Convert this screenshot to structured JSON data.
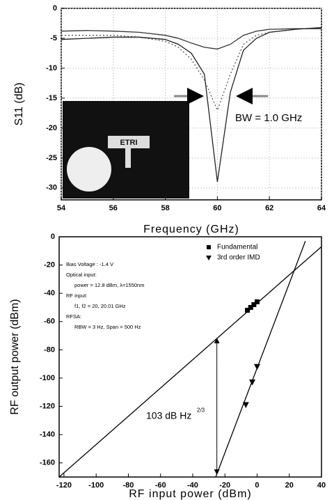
{
  "chart_data": [
    {
      "type": "line",
      "x_label": "Frequency (GHz)",
      "y_label": "S11 (dB)",
      "xlim": [
        54,
        64
      ],
      "ylim": [
        -32,
        0
      ],
      "xticks": [
        54,
        56,
        58,
        60,
        62,
        64
      ],
      "yticks": [
        0,
        -5,
        -10,
        -15,
        -20,
        -25,
        -30
      ],
      "grid": true,
      "x": [
        54,
        55,
        56,
        57,
        58,
        58.5,
        59,
        59.5,
        60,
        60.5,
        61,
        61.5,
        62,
        63,
        64
      ],
      "series": [
        {
          "color": "#333333",
          "dash": "none",
          "values": [
            -3.8,
            -3.7,
            -3.8,
            -4,
            -4.5,
            -5,
            -5.8,
            -6.5,
            -6.8,
            -6,
            -4.5,
            -3.8,
            -3.5,
            -3.4,
            -3.4
          ]
        },
        {
          "color": "#555555",
          "dash": "2,3",
          "values": [
            -4.5,
            -4.5,
            -4.5,
            -4.8,
            -5.5,
            -6.5,
            -8.5,
            -12,
            -17,
            -11,
            -6,
            -4.5,
            -4,
            -3.5,
            -3.2
          ]
        },
        {
          "color": "#222222",
          "dash": "none",
          "values": [
            -5.2,
            -5,
            -4.8,
            -4.8,
            -5.2,
            -6,
            -7.5,
            -11,
            -29,
            -14,
            -7,
            -5,
            -4,
            -3.5,
            -3.2
          ]
        }
      ],
      "annotation": "BW = 1.0 GHz",
      "inset_label": "ETRI"
    },
    {
      "type": "scatter",
      "x_label": "RF input power (dBm)",
      "y_label": "RF output power (dBm)",
      "xlim": [
        -123,
        40
      ],
      "ylim": [
        -170,
        0
      ],
      "xticks": [
        -120,
        -100,
        -80,
        -60,
        -40,
        -20,
        0,
        20,
        40
      ],
      "yticks": [
        0,
        -20,
        -40,
        -60,
        -80,
        -100,
        -120,
        -140,
        -160
      ],
      "series": [
        {
          "name": "Fundamental",
          "marker": "square",
          "color": "#000000",
          "x": [
            -6,
            -4,
            -2,
            0
          ],
          "values": [
            -52,
            -50,
            -48,
            -46
          ]
        },
        {
          "name": "3rd order IMD",
          "marker": "triangle",
          "color": "#000000",
          "x": [
            0,
            -3,
            -7
          ],
          "values": [
            -92,
            -103,
            -119
          ]
        },
        {
          "marker": "none",
          "color": "#000000",
          "x": [
            -123,
            40
          ],
          "values": [
            -170,
            -7
          ]
        },
        {
          "marker": "none",
          "color": "#000000",
          "x": [
            -25.7,
            30
          ],
          "values": [
            -170,
            -3
          ]
        }
      ],
      "legend": "top-right",
      "notes": [
        "Bias Voltage : -1.4 V",
        "Optical input:",
        "power = 12.8 dBm, λ=1550nm",
        "RF input:",
        "f1, f2 = 20, 20.01 GHz",
        "RFSA:",
        "RBW = 3 Hz, Span = 500 Hz"
      ],
      "annotation": {
        "text": "103 dB Hz",
        "superscript": "2/3"
      }
    }
  ]
}
